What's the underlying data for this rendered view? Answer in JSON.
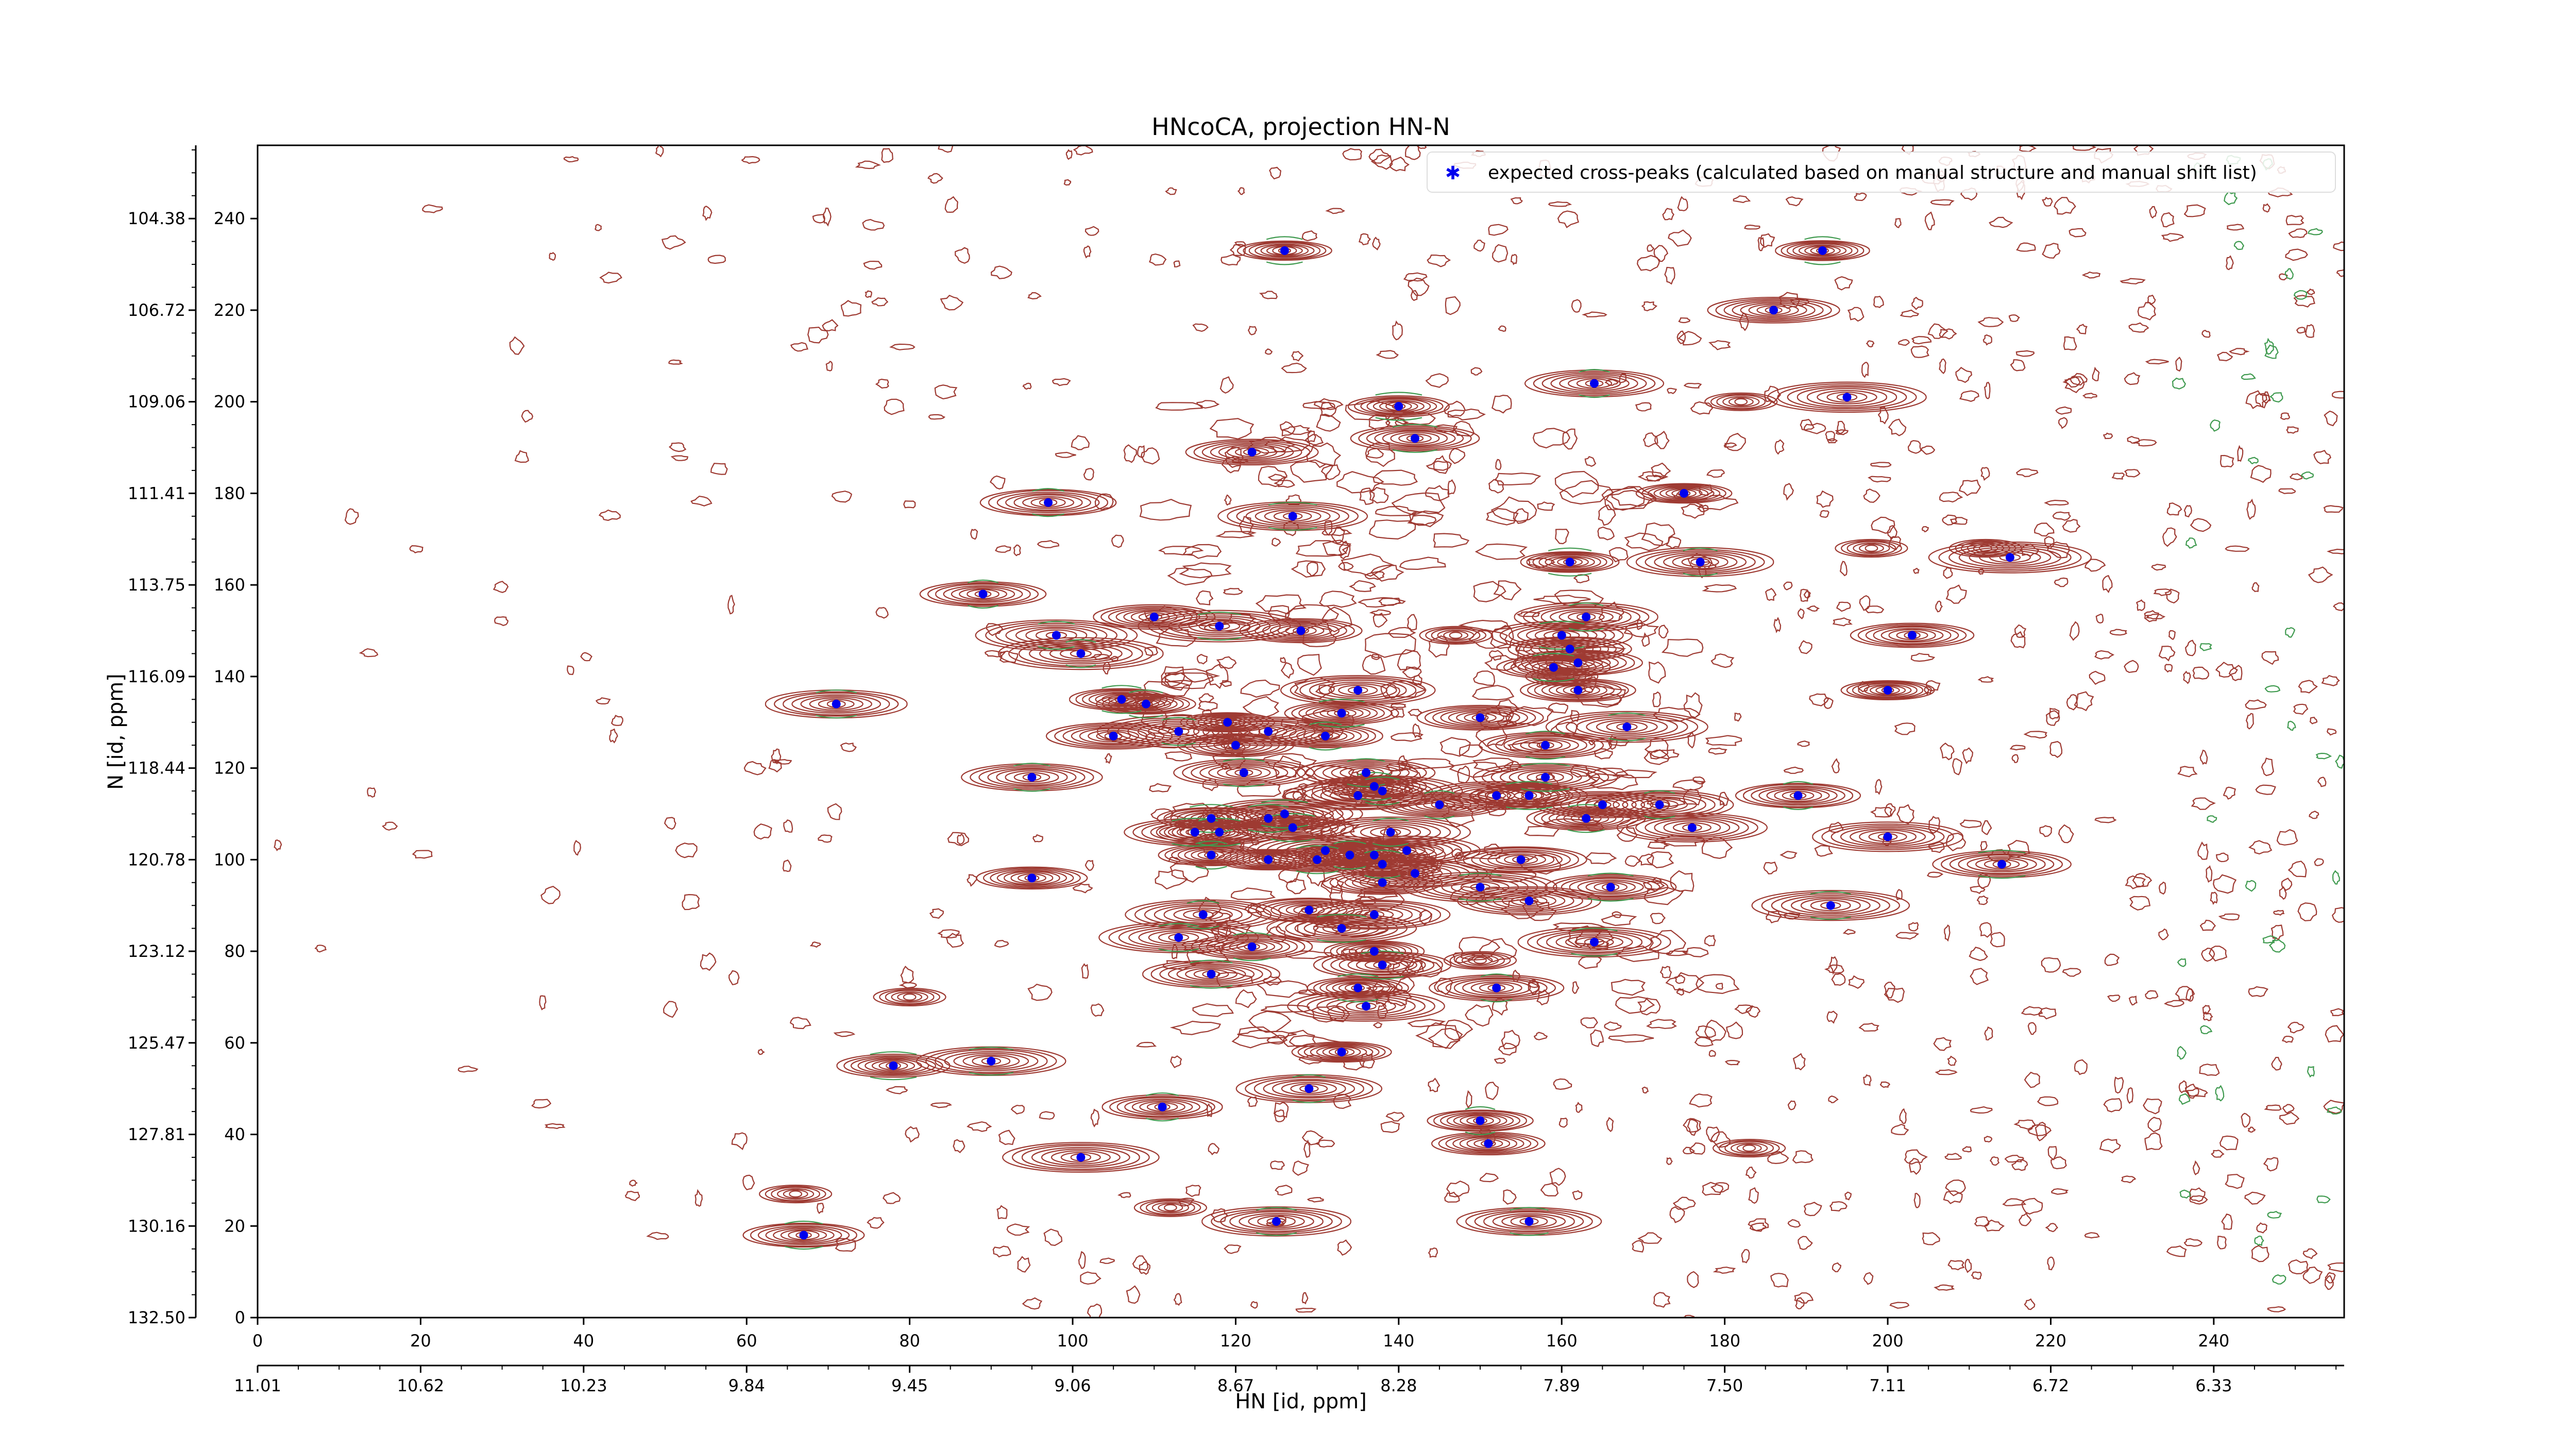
{
  "chart_data": {
    "type": "scatter",
    "title": "HNcoCA, projection HN-N",
    "xlabel": "HN [id, ppm]",
    "ylabel": "N [id, ppm]",
    "xlim": [
      0,
      256
    ],
    "ylim": [
      0,
      256
    ],
    "x_index_ticks": [
      "0",
      "20",
      "40",
      "60",
      "80",
      "100",
      "120",
      "140",
      "160",
      "180",
      "200",
      "220",
      "240"
    ],
    "x_ppm_ticks": [
      "11.01",
      "10.62",
      "10.23",
      "9.84",
      "9.45",
      "9.06",
      "8.67",
      "8.28",
      "7.89",
      "7.50",
      "7.11",
      "6.72",
      "6.33"
    ],
    "y_index_ticks": [
      "0",
      "20",
      "40",
      "60",
      "80",
      "100",
      "120",
      "140",
      "160",
      "180",
      "200",
      "220",
      "240"
    ],
    "y_ppm_ticks": [
      "132.50",
      "130.16",
      "127.81",
      "125.47",
      "123.12",
      "120.78",
      "118.44",
      "116.09",
      "113.75",
      "111.41",
      "109.06",
      "106.72",
      "104.38"
    ],
    "legend": {
      "position": "top-right",
      "entries": [
        "expected cross-peaks (calculated based on manual structure and manual shift list)"
      ]
    },
    "colors": {
      "contour_positive": "#9e3a32",
      "contour_negative": "#3f9a4f",
      "peak_marker": "#0000ee"
    },
    "series": [
      {
        "name": "expected cross-peaks (calculated based on manual structure and manual shift list)",
        "points": [
          [
            126,
            233
          ],
          [
            192,
            233
          ],
          [
            186,
            220
          ],
          [
            164,
            204
          ],
          [
            195,
            201
          ],
          [
            140,
            199
          ],
          [
            142,
            192
          ],
          [
            122,
            189
          ],
          [
            97,
            178
          ],
          [
            127,
            175
          ],
          [
            175,
            180
          ],
          [
            177,
            165
          ],
          [
            215,
            166
          ],
          [
            161,
            165
          ],
          [
            163,
            153
          ],
          [
            89,
            158
          ],
          [
            110,
            153
          ],
          [
            118,
            151
          ],
          [
            128,
            150
          ],
          [
            98,
            149
          ],
          [
            101,
            145
          ],
          [
            160,
            149
          ],
          [
            161,
            146
          ],
          [
            162,
            143
          ],
          [
            159,
            142
          ],
          [
            203,
            149
          ],
          [
            71,
            134
          ],
          [
            106,
            135
          ],
          [
            109,
            134
          ],
          [
            135,
            137
          ],
          [
            162,
            137
          ],
          [
            200,
            137
          ],
          [
            150,
            131
          ],
          [
            133,
            132
          ],
          [
            105,
            127
          ],
          [
            113,
            128
          ],
          [
            119,
            130
          ],
          [
            124,
            128
          ],
          [
            131,
            127
          ],
          [
            120,
            125
          ],
          [
            168,
            129
          ],
          [
            158,
            125
          ],
          [
            95,
            118
          ],
          [
            121,
            119
          ],
          [
            136,
            119
          ],
          [
            137,
            116
          ],
          [
            138,
            115
          ],
          [
            135,
            114
          ],
          [
            145,
            112
          ],
          [
            152,
            114
          ],
          [
            156,
            114
          ],
          [
            158,
            118
          ],
          [
            165,
            112
          ],
          [
            172,
            112
          ],
          [
            189,
            114
          ],
          [
            117,
            109
          ],
          [
            118,
            106
          ],
          [
            115,
            106
          ],
          [
            124,
            109
          ],
          [
            126,
            110
          ],
          [
            127,
            107
          ],
          [
            139,
            106
          ],
          [
            141,
            102
          ],
          [
            134,
            101
          ],
          [
            137,
            101
          ],
          [
            138,
            99
          ],
          [
            163,
            109
          ],
          [
            176,
            107
          ],
          [
            200,
            105
          ],
          [
            117,
            101
          ],
          [
            124,
            100
          ],
          [
            130,
            100
          ],
          [
            131,
            102
          ],
          [
            142,
            97
          ],
          [
            155,
            100
          ],
          [
            95,
            96
          ],
          [
            129,
            89
          ],
          [
            116,
            88
          ],
          [
            137,
            88
          ],
          [
            138,
            95
          ],
          [
            150,
            94
          ],
          [
            156,
            91
          ],
          [
            166,
            94
          ],
          [
            193,
            90
          ],
          [
            214,
            99
          ],
          [
            113,
            83
          ],
          [
            122,
            81
          ],
          [
            133,
            85
          ],
          [
            164,
            82
          ],
          [
            137,
            80
          ],
          [
            138,
            77
          ],
          [
            117,
            75
          ],
          [
            135,
            72
          ],
          [
            152,
            72
          ],
          [
            136,
            68
          ],
          [
            133,
            58
          ],
          [
            78,
            55
          ],
          [
            90,
            56
          ],
          [
            129,
            50
          ],
          [
            111,
            46
          ],
          [
            150,
            43
          ],
          [
            151,
            38
          ],
          [
            101,
            35
          ],
          [
            67,
            18
          ],
          [
            125,
            21
          ],
          [
            156,
            21
          ]
        ]
      }
    ]
  }
}
